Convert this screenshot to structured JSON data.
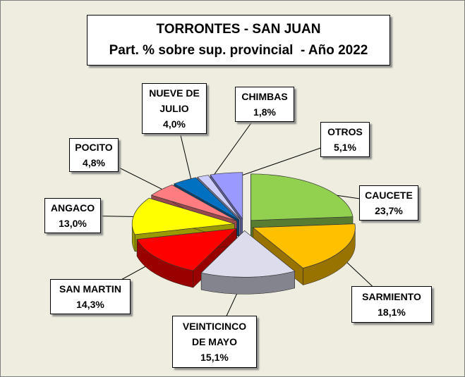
{
  "chart_data": {
    "type": "pie",
    "title": "TORRONTES - SAN JUAN",
    "subtitle": "Part. % sobre sup. provincial  - Año 2022",
    "categories": [
      "CAUCETE",
      "SARMIENTO",
      "VEINTICINCO DE MAYO",
      "SAN MARTIN",
      "ANGACO",
      "POCITO",
      "NUEVE DE JULIO",
      "CHIMBAS",
      "OTROS"
    ],
    "values": [
      23.7,
      18.1,
      15.1,
      14.3,
      13.0,
      4.8,
      4.0,
      1.8,
      5.1
    ],
    "value_labels": [
      "23,7%",
      "18,1%",
      "15,1%",
      "14,3%",
      "13,0%",
      "4,8%",
      "4,0%",
      "1,8%",
      "5,1%"
    ],
    "colors": [
      "#92d050",
      "#ffc000",
      "#dcdcec",
      "#ff0000",
      "#ffff00",
      "#ff7c80",
      "#0070c0",
      "#ccccff",
      "#9999ff"
    ]
  }
}
